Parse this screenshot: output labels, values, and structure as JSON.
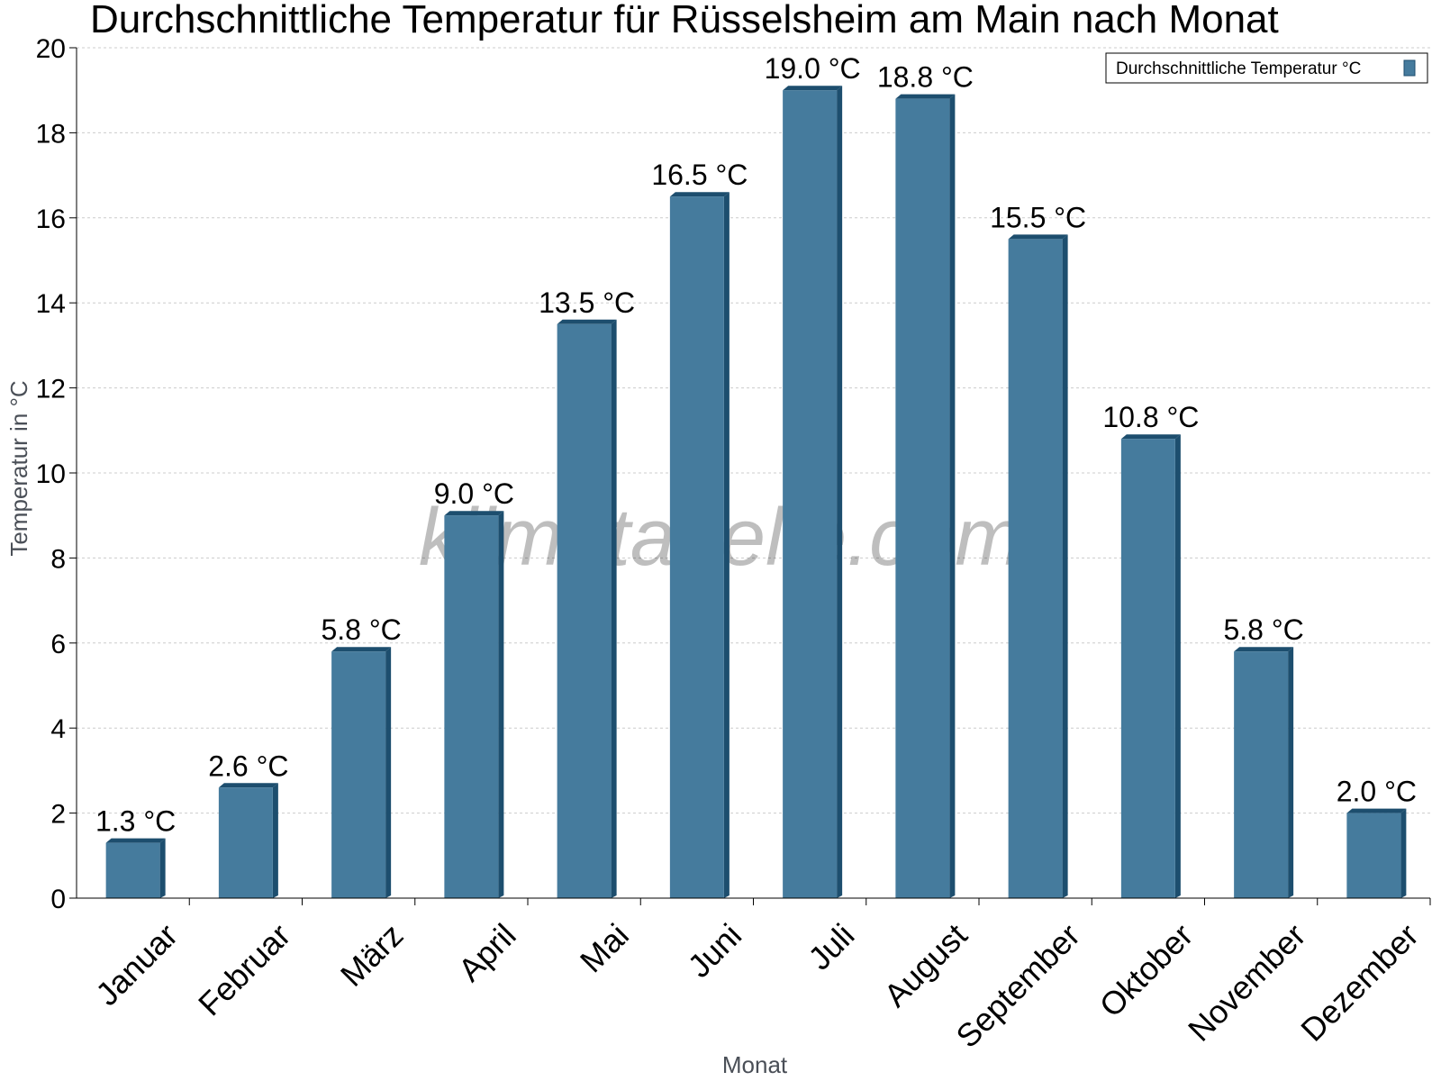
{
  "chart_data": {
    "type": "bar",
    "title": "Durchschnittliche Temperatur für Rüsselsheim am Main nach Monat",
    "xlabel": "Monat",
    "ylabel": "Temperatur in °C",
    "ylim": [
      0,
      20
    ],
    "yticks": [
      0,
      2,
      4,
      6,
      8,
      10,
      12,
      14,
      16,
      18,
      20
    ],
    "categories": [
      "Januar",
      "Februar",
      "März",
      "April",
      "Mai",
      "Juni",
      "Juli",
      "August",
      "September",
      "Oktober",
      "November",
      "Dezember"
    ],
    "series": [
      {
        "name": "Durchschnittliche Temperatur °C",
        "values": [
          1.3,
          2.6,
          5.8,
          9.0,
          13.5,
          16.5,
          19.0,
          18.8,
          15.5,
          10.8,
          5.8,
          2.0
        ],
        "labels": [
          "1.3 °C",
          "2.6 °C",
          "5.8 °C",
          "9.0 °C",
          "13.5 °C",
          "16.5 °C",
          "19.0 °C",
          "18.8 °C",
          "15.5 °C",
          "10.8 °C",
          "5.8 °C",
          "2.0 °C"
        ]
      }
    ],
    "grid": true,
    "legend_position": "top-right",
    "colors": {
      "bar": "#457b9d",
      "bar_dark": "#1d4e6e",
      "grid": "#cccccc"
    }
  },
  "watermark": "klimatabelle.com"
}
